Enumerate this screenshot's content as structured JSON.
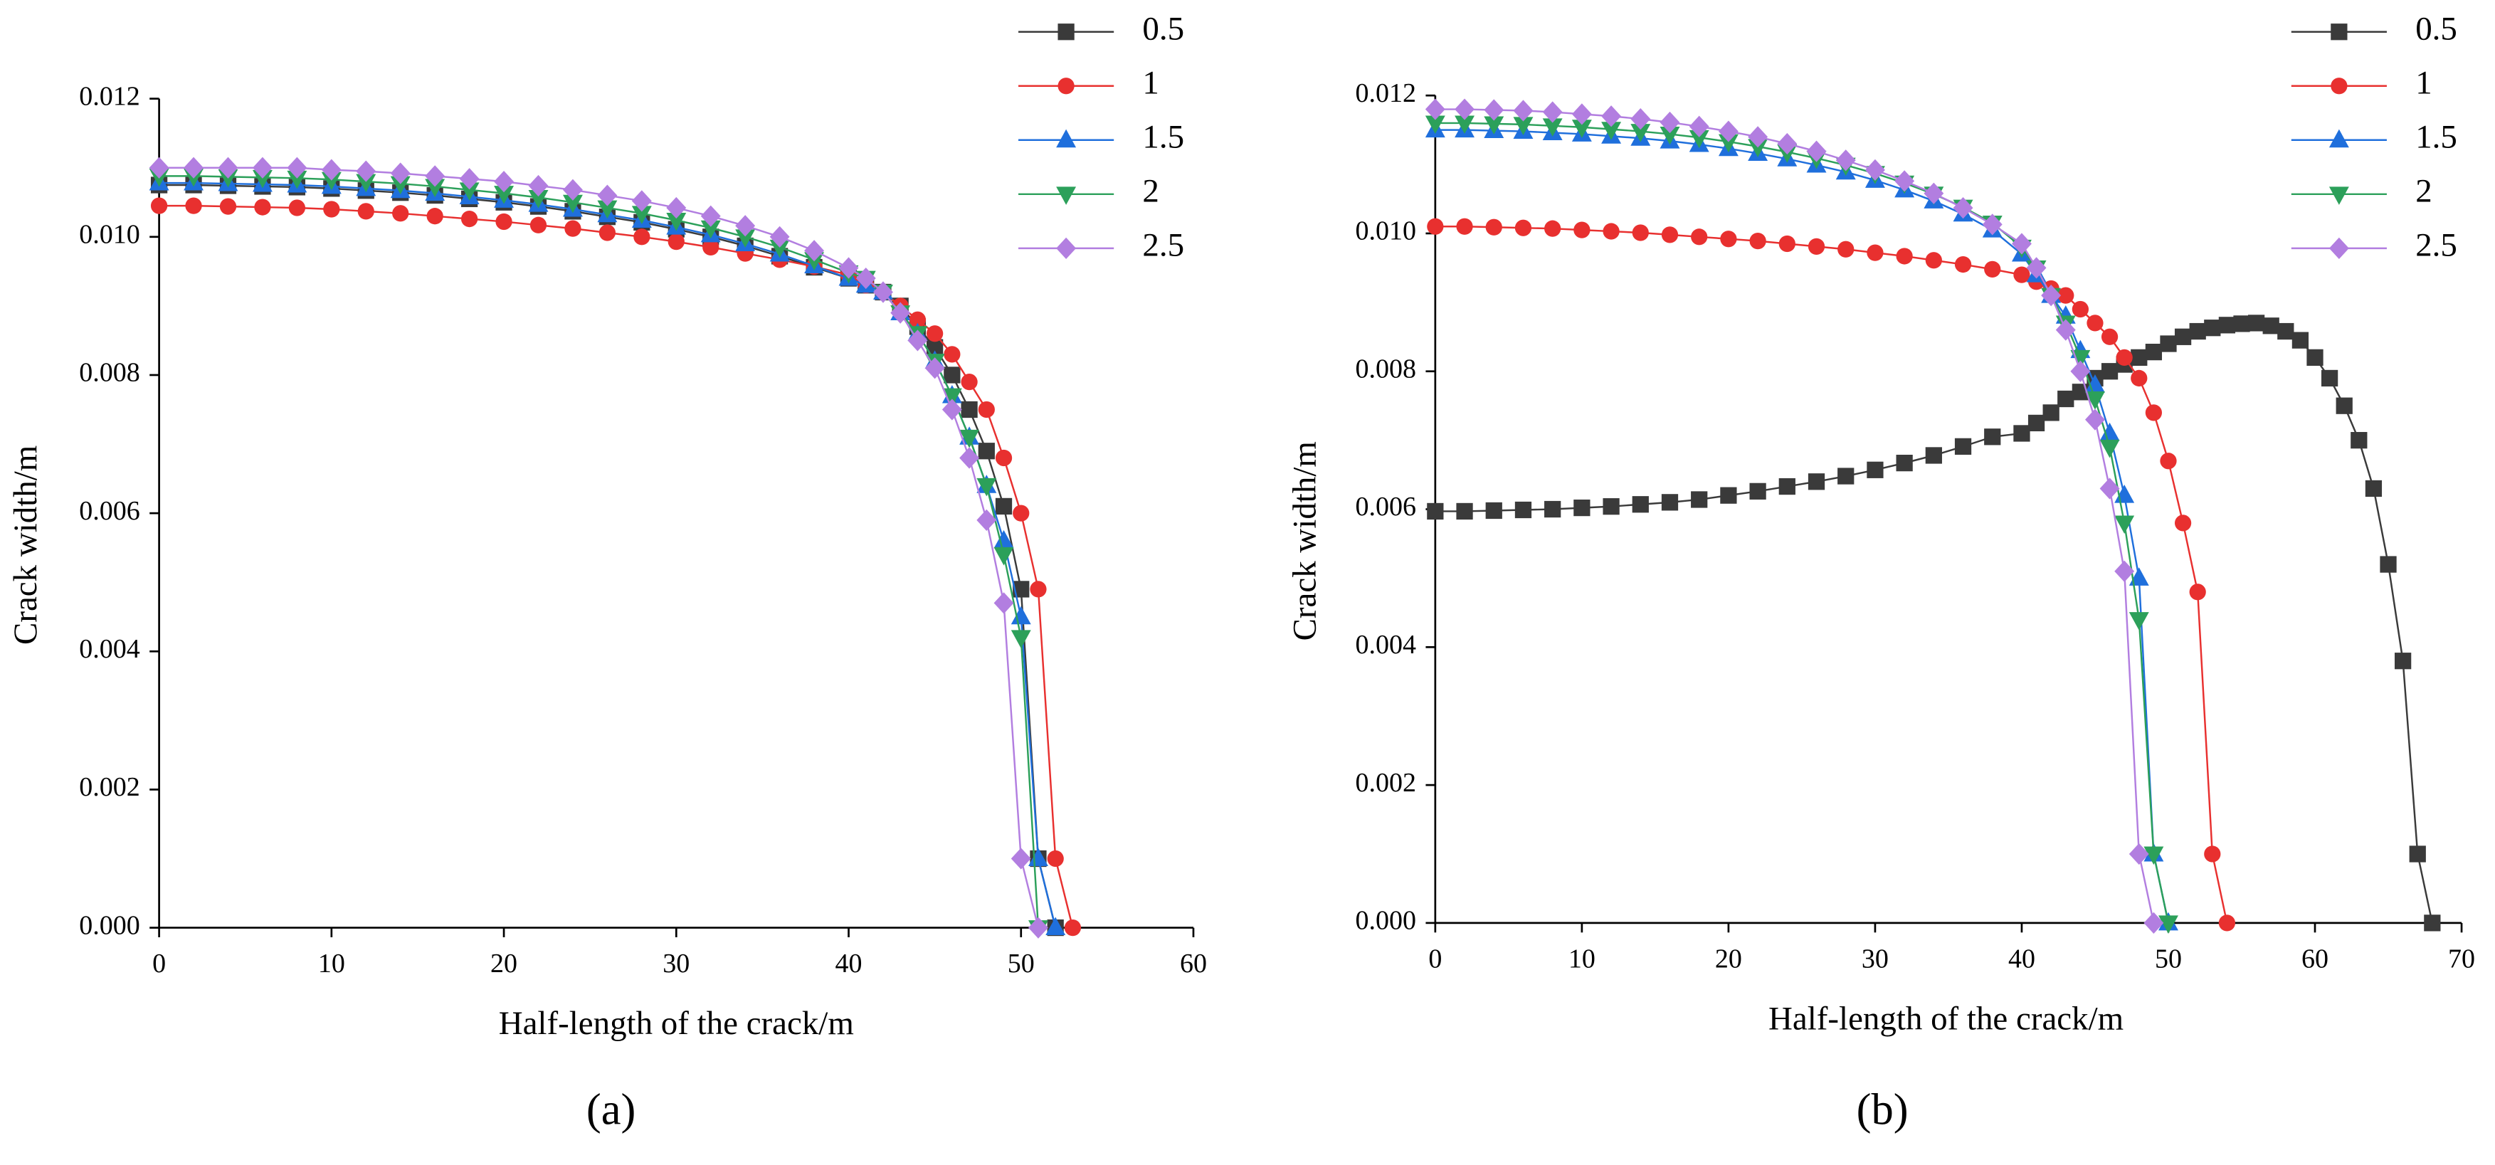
{
  "chart_data": [
    {
      "type": "line",
      "caption": "(a)",
      "xlabel": "Half-length of the crack/m",
      "ylabel": "Crack width/m",
      "xlim": [
        0,
        60
      ],
      "ylim": [
        0,
        0.012
      ],
      "xticks": [
        0,
        10,
        20,
        30,
        40,
        50,
        60
      ],
      "yticks": [
        {
          "value": 0,
          "label": "0.000"
        },
        {
          "value": 0.002,
          "label": "0.002"
        },
        {
          "value": 0.004,
          "label": "0.004"
        },
        {
          "value": 0.006,
          "label": "0.006"
        },
        {
          "value": 0.008,
          "label": "0.008"
        },
        {
          "value": 0.01,
          "label": "0.010"
        },
        {
          "value": 0.012,
          "label": "0.012"
        }
      ],
      "legend": "top-right",
      "series": [
        {
          "name": "0.5",
          "color": "#3a3a3a",
          "marker": "square",
          "x": [
            0,
            2,
            4,
            6,
            8,
            10,
            12,
            14,
            16,
            18,
            20,
            22,
            24,
            26,
            28,
            30,
            32,
            34,
            36,
            38,
            40,
            41,
            42,
            43,
            44,
            45,
            46,
            47,
            48,
            49,
            50,
            51,
            52
          ],
          "values": [
            0.01075,
            0.01075,
            0.01074,
            0.01073,
            0.01072,
            0.0107,
            0.01067,
            0.01064,
            0.0106,
            0.01055,
            0.0105,
            0.01044,
            0.01037,
            0.01029,
            0.01021,
            0.01011,
            0.01,
            0.00987,
            0.00972,
            0.00956,
            0.0094,
            0.0093,
            0.0092,
            0.009,
            0.0087,
            0.0084,
            0.008,
            0.0075,
            0.0069,
            0.0061,
            0.0049,
            0.001,
            0
          ]
        },
        {
          "name": "1",
          "color": "#e8302f",
          "marker": "circle",
          "x": [
            0,
            2,
            4,
            6,
            8,
            10,
            12,
            14,
            16,
            18,
            20,
            22,
            24,
            26,
            28,
            30,
            32,
            34,
            36,
            38,
            40,
            41,
            42,
            43,
            44,
            45,
            46,
            47,
            48,
            49,
            50,
            51,
            52,
            53
          ],
          "values": [
            0.01045,
            0.01045,
            0.01044,
            0.01043,
            0.01042,
            0.0104,
            0.01037,
            0.01034,
            0.0103,
            0.01026,
            0.01022,
            0.01017,
            0.01012,
            0.01006,
            0.01,
            0.00993,
            0.00985,
            0.00976,
            0.00967,
            0.00957,
            0.00945,
            0.0093,
            0.0092,
            0.009,
            0.0088,
            0.0086,
            0.0083,
            0.0079,
            0.0075,
            0.0068,
            0.006,
            0.0049,
            0.001,
            0
          ]
        },
        {
          "name": "1.5",
          "color": "#1f6fdc",
          "marker": "triangle-up",
          "x": [
            0,
            2,
            4,
            6,
            8,
            10,
            12,
            14,
            16,
            18,
            20,
            22,
            24,
            26,
            28,
            30,
            32,
            34,
            36,
            38,
            40,
            41,
            42,
            43,
            44,
            45,
            46,
            47,
            48,
            49,
            50,
            51,
            52
          ],
          "values": [
            0.01078,
            0.01078,
            0.01077,
            0.01076,
            0.01075,
            0.01073,
            0.0107,
            0.01067,
            0.01063,
            0.01058,
            0.01053,
            0.01047,
            0.0104,
            0.01032,
            0.01024,
            0.01014,
            0.01003,
            0.0099,
            0.00975,
            0.00958,
            0.0094,
            0.0093,
            0.0092,
            0.0089,
            0.0086,
            0.0082,
            0.0077,
            0.0071,
            0.0064,
            0.0056,
            0.0045,
            0.001,
            0
          ]
        },
        {
          "name": "2",
          "color": "#2ca05a",
          "marker": "triangle-down",
          "x": [
            0,
            2,
            4,
            6,
            8,
            10,
            12,
            14,
            16,
            18,
            20,
            22,
            24,
            26,
            28,
            30,
            32,
            34,
            36,
            38,
            40,
            41,
            42,
            43,
            44,
            45,
            46,
            47,
            48,
            49,
            50,
            51
          ],
          "values": [
            0.01088,
            0.01088,
            0.01087,
            0.01086,
            0.01085,
            0.01083,
            0.0108,
            0.01077,
            0.01073,
            0.01068,
            0.01063,
            0.01057,
            0.0105,
            0.01042,
            0.01034,
            0.01024,
            0.01013,
            0.01,
            0.00985,
            0.00967,
            0.00948,
            0.0094,
            0.0092,
            0.0089,
            0.0086,
            0.0082,
            0.0077,
            0.0071,
            0.0064,
            0.0054,
            0.0042,
            0
          ]
        },
        {
          "name": "2.5",
          "color": "#b27ee0",
          "marker": "diamond",
          "x": [
            0,
            2,
            4,
            6,
            8,
            10,
            12,
            14,
            16,
            18,
            20,
            22,
            24,
            26,
            28,
            30,
            32,
            34,
            36,
            38,
            40,
            41,
            42,
            43,
            44,
            45,
            46,
            47,
            48,
            49,
            50,
            51
          ],
          "values": [
            0.011,
            0.011,
            0.011,
            0.011,
            0.011,
            0.01097,
            0.01095,
            0.01092,
            0.01088,
            0.01084,
            0.0108,
            0.01074,
            0.01068,
            0.0106,
            0.01052,
            0.01042,
            0.0103,
            0.01016,
            0.01,
            0.0098,
            0.00955,
            0.0094,
            0.0092,
            0.0089,
            0.0085,
            0.0081,
            0.0075,
            0.0068,
            0.0059,
            0.0047,
            0.001,
            0
          ]
        }
      ]
    },
    {
      "type": "line",
      "caption": "(b)",
      "xlabel": "Half-length of the crack/m",
      "ylabel": "Crack width/m",
      "xlim": [
        0,
        70
      ],
      "ylim": [
        0,
        0.012
      ],
      "xticks": [
        0,
        10,
        20,
        30,
        40,
        50,
        60,
        70
      ],
      "yticks": [
        {
          "value": 0,
          "label": "0.000"
        },
        {
          "value": 0.002,
          "label": "0.002"
        },
        {
          "value": 0.004,
          "label": "0.004"
        },
        {
          "value": 0.006,
          "label": "0.006"
        },
        {
          "value": 0.008,
          "label": "0.008"
        },
        {
          "value": 0.01,
          "label": "0.010"
        },
        {
          "value": 0.012,
          "label": "0.012"
        }
      ],
      "legend": "top-right",
      "series": [
        {
          "name": "0.5",
          "color": "#3a3a3a",
          "marker": "square",
          "x": [
            0,
            2,
            4,
            6,
            8,
            10,
            12,
            14,
            16,
            18,
            20,
            22,
            24,
            26,
            28,
            30,
            32,
            34,
            36,
            38,
            40,
            41,
            42,
            43,
            44,
            45,
            46,
            47,
            48,
            49,
            50,
            51,
            52,
            53,
            54,
            55,
            56,
            57,
            58,
            59,
            60,
            61,
            62,
            63,
            64,
            65,
            66,
            67,
            68
          ],
          "values": [
            0.00597,
            0.00597,
            0.00598,
            0.00599,
            0.006,
            0.00602,
            0.00604,
            0.00607,
            0.0061,
            0.00614,
            0.0062,
            0.00626,
            0.00633,
            0.0064,
            0.00648,
            0.00657,
            0.00667,
            0.00678,
            0.00691,
            0.00705,
            0.0071,
            0.00725,
            0.0074,
            0.0076,
            0.0077,
            0.0079,
            0.008,
            0.0081,
            0.0082,
            0.00828,
            0.0084,
            0.0085,
            0.00858,
            0.00863,
            0.00867,
            0.00869,
            0.0087,
            0.00866,
            0.00858,
            0.00845,
            0.0082,
            0.0079,
            0.0075,
            0.007,
            0.0063,
            0.0052,
            0.0038,
            0.001,
            0
          ]
        },
        {
          "name": "1",
          "color": "#e8302f",
          "marker": "circle",
          "x": [
            0,
            2,
            4,
            6,
            8,
            10,
            12,
            14,
            16,
            18,
            20,
            22,
            24,
            26,
            28,
            30,
            32,
            34,
            36,
            38,
            40,
            41,
            42,
            43,
            44,
            45,
            46,
            47,
            48,
            49,
            50,
            51,
            52,
            53,
            54
          ],
          "values": [
            0.0101,
            0.0101,
            0.01009,
            0.01008,
            0.01007,
            0.01005,
            0.01003,
            0.01001,
            0.00998,
            0.00995,
            0.00992,
            0.00989,
            0.00985,
            0.00981,
            0.00977,
            0.00972,
            0.00967,
            0.00961,
            0.00955,
            0.00948,
            0.0094,
            0.0093,
            0.0092,
            0.0091,
            0.0089,
            0.0087,
            0.0085,
            0.0082,
            0.0079,
            0.0074,
            0.0067,
            0.0058,
            0.0048,
            0.001,
            0
          ]
        },
        {
          "name": "1.5",
          "color": "#1f6fdc",
          "marker": "triangle-up",
          "x": [
            0,
            2,
            4,
            6,
            8,
            10,
            12,
            14,
            16,
            18,
            20,
            22,
            24,
            26,
            28,
            30,
            32,
            34,
            36,
            38,
            40,
            41,
            42,
            43,
            44,
            45,
            46,
            47,
            48,
            49,
            50
          ],
          "values": [
            0.0115,
            0.0115,
            0.01149,
            0.01148,
            0.01146,
            0.01144,
            0.01141,
            0.01138,
            0.01134,
            0.01129,
            0.01123,
            0.01116,
            0.01108,
            0.01099,
            0.01089,
            0.01077,
            0.01063,
            0.01047,
            0.01028,
            0.01005,
            0.0097,
            0.0094,
            0.0091,
            0.0088,
            0.0083,
            0.0078,
            0.0071,
            0.0062,
            0.005,
            0.001,
            0
          ]
        },
        {
          "name": "2",
          "color": "#2ca05a",
          "marker": "triangle-down",
          "x": [
            0,
            2,
            4,
            6,
            8,
            10,
            12,
            14,
            16,
            18,
            20,
            22,
            24,
            26,
            28,
            30,
            32,
            34,
            36,
            38,
            40,
            41,
            42,
            43,
            44,
            45,
            46,
            47,
            48,
            49,
            50
          ],
          "values": [
            0.0116,
            0.0116,
            0.01159,
            0.01158,
            0.01156,
            0.01154,
            0.01151,
            0.01148,
            0.01144,
            0.01139,
            0.01133,
            0.01126,
            0.01118,
            0.01109,
            0.01099,
            0.01087,
            0.01073,
            0.01057,
            0.01038,
            0.01015,
            0.0098,
            0.0095,
            0.0091,
            0.0087,
            0.0082,
            0.0076,
            0.0069,
            0.0058,
            0.0044,
            0.001,
            0
          ]
        },
        {
          "name": "2.5",
          "color": "#b27ee0",
          "marker": "diamond",
          "x": [
            0,
            2,
            4,
            6,
            8,
            10,
            12,
            14,
            16,
            18,
            20,
            22,
            24,
            26,
            28,
            30,
            32,
            34,
            36,
            38,
            40,
            41,
            42,
            43,
            44,
            45,
            46,
            47,
            48,
            49
          ],
          "values": [
            0.0118,
            0.0118,
            0.01179,
            0.01178,
            0.01176,
            0.01173,
            0.0117,
            0.01166,
            0.01161,
            0.01155,
            0.01148,
            0.0114,
            0.0113,
            0.01119,
            0.01106,
            0.01092,
            0.01076,
            0.01058,
            0.01037,
            0.01013,
            0.00985,
            0.0095,
            0.0091,
            0.0086,
            0.008,
            0.0073,
            0.0063,
            0.0051,
            0.001,
            0
          ]
        }
      ]
    }
  ]
}
